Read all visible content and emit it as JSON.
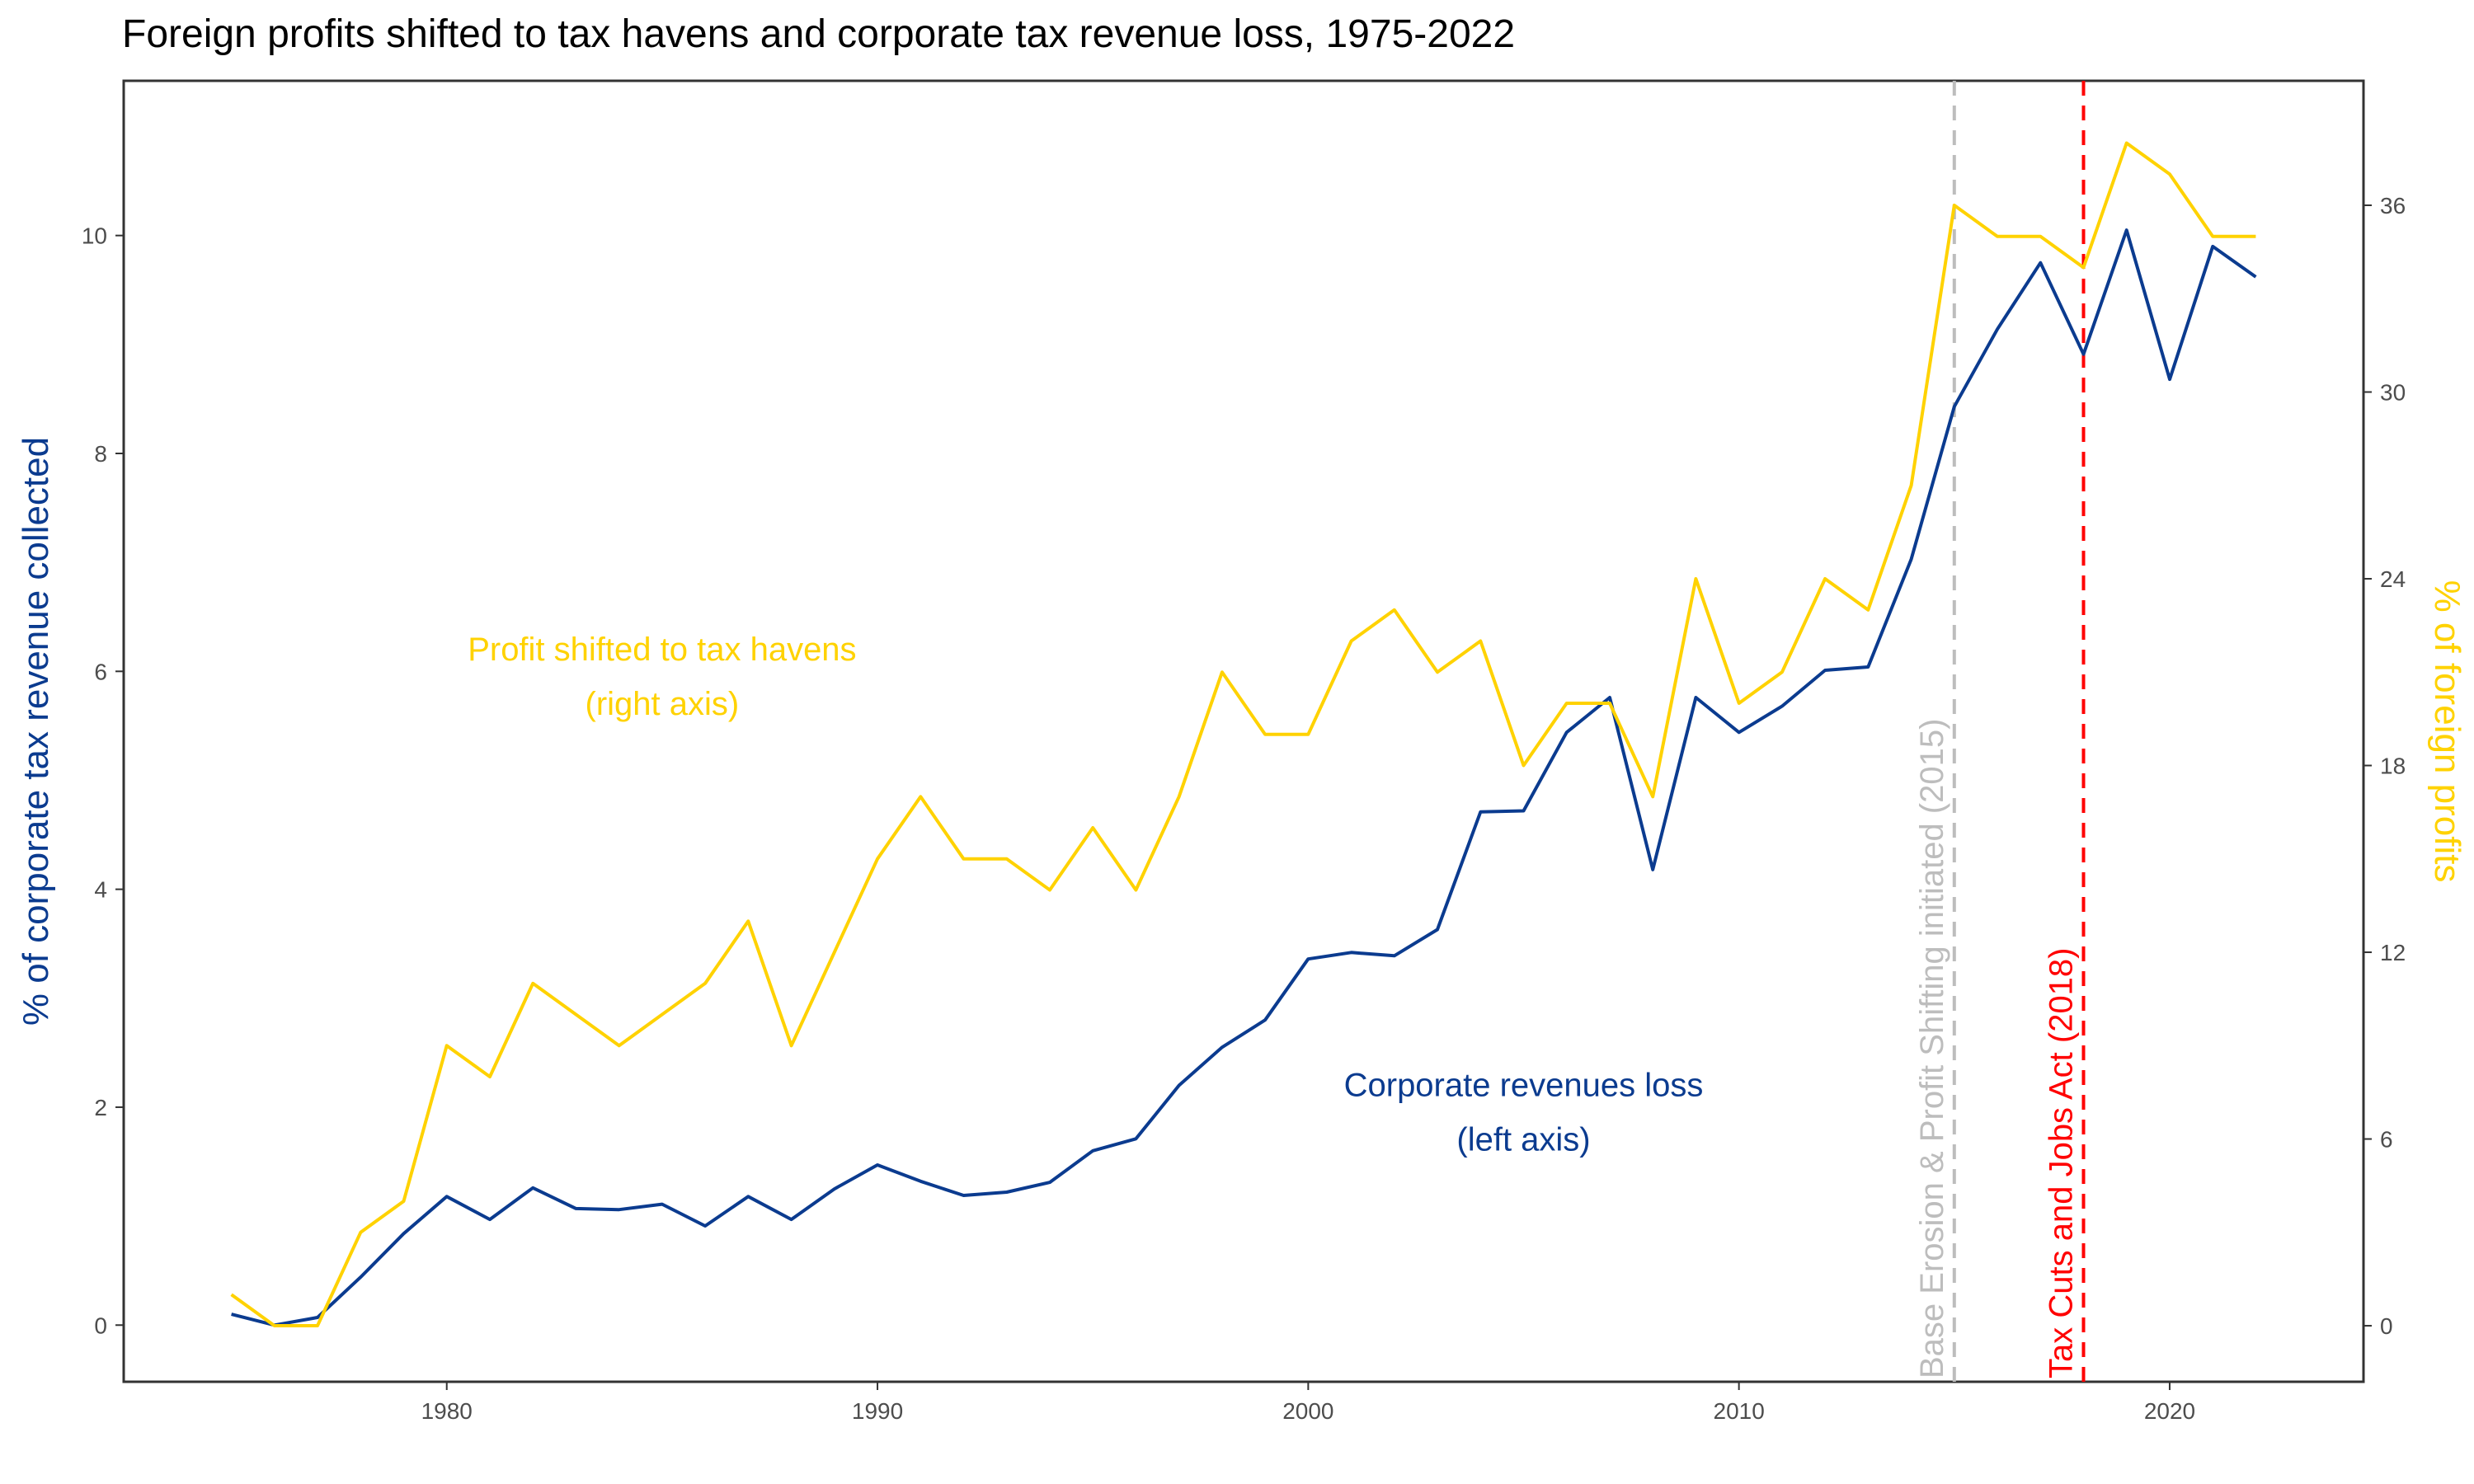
{
  "chart_data": {
    "type": "line",
    "title": "Foreign profits shifted to tax havens and corporate tax revenue loss, 1975-2022",
    "ylabel_left": "% of corporate tax revenue collected",
    "ylabel_right": "% of foreign profits",
    "xlim": [
      1972.5,
      2024.5
    ],
    "ylim_left": [
      -0.52,
      11.42
    ],
    "ylim_right": [
      -1.8,
      40.0
    ],
    "x_ticks": [
      1980,
      1990,
      2000,
      2010,
      2020
    ],
    "y_ticks_left": [
      0,
      2,
      4,
      6,
      8,
      10
    ],
    "y_ticks_right": [
      0,
      6,
      12,
      18,
      24,
      30,
      36
    ],
    "grid": false,
    "x": [
      1975,
      1976,
      1977,
      1978,
      1979,
      1980,
      1981,
      1982,
      1983,
      1984,
      1985,
      1986,
      1987,
      1988,
      1989,
      1990,
      1991,
      1992,
      1993,
      1994,
      1995,
      1996,
      1997,
      1998,
      1999,
      2000,
      2001,
      2002,
      2003,
      2004,
      2005,
      2006,
      2007,
      2008,
      2009,
      2010,
      2011,
      2012,
      2013,
      2014,
      2015,
      2016,
      2017,
      2018,
      2019,
      2020,
      2021,
      2022
    ],
    "series": [
      {
        "name": "Corporate revenues loss",
        "axis": "left",
        "color": "#0b3b8f",
        "values": [
          0.1,
          0.0,
          0.07,
          0.44,
          0.84,
          1.18,
          0.97,
          1.26,
          1.07,
          1.06,
          1.11,
          0.91,
          1.18,
          0.97,
          1.25,
          1.47,
          1.32,
          1.19,
          1.22,
          1.31,
          1.6,
          1.71,
          2.2,
          2.55,
          2.8,
          3.36,
          3.42,
          3.39,
          3.63,
          4.71,
          4.72,
          5.44,
          5.76,
          4.18,
          5.76,
          5.44,
          5.68,
          6.01,
          6.04,
          7.03,
          8.43,
          9.14,
          9.75,
          8.91,
          10.05,
          8.68,
          9.9,
          9.62
        ]
      },
      {
        "name": "Profit shifted to tax havens",
        "axis": "right",
        "color": "#ffd200",
        "values": [
          1.0,
          0.0,
          0.0,
          3.0,
          4.0,
          9.0,
          8.0,
          11.0,
          10.0,
          9.0,
          10.0,
          11.0,
          13.0,
          9.0,
          12.0,
          15.0,
          17.0,
          15.0,
          15.0,
          14.0,
          16.0,
          14.0,
          17.0,
          21.0,
          19.0,
          19.0,
          22.0,
          23.0,
          21.0,
          22.0,
          18.0,
          20.0,
          20.0,
          17.0,
          24.0,
          20.0,
          21.0,
          24.0,
          23.0,
          27.0,
          36.0,
          35.0,
          35.0,
          34.0,
          38.0,
          37.0,
          35.0,
          35.0
        ]
      }
    ],
    "annotations": [
      {
        "line1": "Profit shifted to tax havens",
        "line2": "(right axis)",
        "color": "#ffd200",
        "x": 1985.0,
        "y_left": 6.1
      },
      {
        "line1": "Corporate revenues loss",
        "line2": "(left axis)",
        "color": "#0b3b8f",
        "x": 2005.0,
        "y_left": 2.1
      }
    ],
    "vlines": [
      {
        "x": 2015,
        "label": "Base Erosion & Profit Shifting initiated (2015)",
        "color": "#bdbdbd"
      },
      {
        "x": 2018,
        "label": "Tax Cuts and Jobs Act (2018)",
        "color": "#ff0000"
      }
    ]
  }
}
